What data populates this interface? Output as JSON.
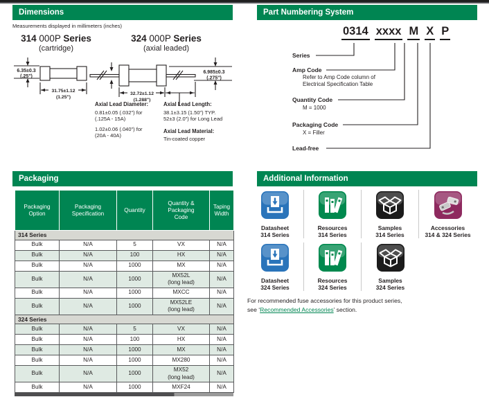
{
  "colors": {
    "brand_green": "#008552",
    "row_shade_green": "#dfeae3",
    "series_row_gray": "#d7d8d2",
    "datasheet_blue": "#2a74ba",
    "resources_green": "#00894e",
    "samples_black": "#1b1b1b",
    "accessories_maroon": "#8e2a5f",
    "link_green": "#008552"
  },
  "dimensions": {
    "header": "Dimensions",
    "note": "Measurements displayed in millimeters (inches)",
    "series_314": {
      "num": "314",
      "mid": " 000P ",
      "suffix": "Series",
      "sub": "(cartridge)"
    },
    "series_324": {
      "num": "324",
      "mid": " 000P ",
      "suffix": "Series",
      "sub": "(axial leaded)"
    },
    "diagram_314": {
      "dia": "6.35±0.3",
      "dia_in": "(.25\")",
      "len": "31.75±1.12",
      "len_in": "(1.25\")"
    },
    "diagram_324": {
      "dia": "6.985±0.3",
      "dia_in": "(.275\")",
      "len": "32.72±1.12",
      "len_in": "(1.288\")"
    },
    "lead_diameter": {
      "title": "Axial Lead Diameter:",
      "line1": "0.81±0.05 (.032\") for",
      "line2": "(.125A - 15A)",
      "line3": "1.02±0.06 (.040\") for",
      "line4": "(20A - 40A)"
    },
    "lead_length": {
      "title": "Axial Lead Length:",
      "line1": "38.1±3.15 (1.50\") TYP.",
      "line2": "52±3 (2.0\") for Long Lead"
    },
    "lead_material": {
      "title": "Axial Lead Material:",
      "line1": "Tin-coated copper"
    }
  },
  "part_numbering": {
    "header": "Part Numbering System",
    "code_groups": [
      "0314",
      "xxxx",
      "M",
      "X",
      "P"
    ],
    "labels": {
      "series": "Series",
      "amp_code": "Amp Code",
      "amp_desc1": "Refer to Amp Code column of",
      "amp_desc2": "Electrical Specification Table",
      "quantity_code": "Quantity Code",
      "quantity_desc": "M = 1000",
      "packaging_code": "Packaging Code",
      "packaging_desc": "X = Filler",
      "lead_free": "Lead-free"
    }
  },
  "packaging": {
    "header": "Packaging",
    "columns": [
      "Packaging\nOption",
      "Packaging\nSpecification",
      "Quantity",
      "Quantity &\nPackaging\nCode",
      "Taping\nWidth"
    ],
    "groups": [
      {
        "name": "314 Series",
        "first_row_shaded": false,
        "rows": [
          [
            "Bulk",
            "N/A",
            "5",
            "VX",
            "N/A"
          ],
          [
            "Bulk",
            "N/A",
            "100",
            "HX",
            "N/A"
          ],
          [
            "Bulk",
            "N/A",
            "1000",
            "MX",
            "N/A"
          ],
          [
            "Bulk",
            "N/A",
            "1000",
            "MX52L\n(long lead)",
            "N/A"
          ],
          [
            "Bulk",
            "N/A",
            "1000",
            "MXCC",
            "N/A"
          ],
          [
            "Bulk",
            "N/A",
            "1000",
            "MX52LE\n(long lead)",
            "N/A"
          ]
        ]
      },
      {
        "name": "324 Series",
        "first_row_shaded": true,
        "rows": [
          [
            "Bulk",
            "N/A",
            "5",
            "VX",
            "N/A"
          ],
          [
            "Bulk",
            "N/A",
            "100",
            "HX",
            "N/A"
          ],
          [
            "Bulk",
            "N/A",
            "1000",
            "MX",
            "N/A"
          ],
          [
            "Bulk",
            "N/A",
            "1000",
            "MX280",
            "N/A"
          ],
          [
            "Bulk",
            "N/A",
            "1000",
            "MX52\n(long lead)",
            "N/A"
          ],
          [
            "Bulk",
            "N/A",
            "1000",
            "MXF24",
            "N/A"
          ]
        ]
      }
    ]
  },
  "additional_info": {
    "header": "Additional Information",
    "tiles_row1": [
      {
        "icon": "datasheet",
        "color": "#2a74ba",
        "label": "Datasheet\n314 Series"
      },
      {
        "icon": "resources",
        "color": "#00894e",
        "label": "Resources\n314 Series"
      },
      {
        "icon": "samples",
        "color": "#1b1b1b",
        "label": "Samples\n314 Series"
      },
      {
        "icon": "accessories",
        "color": "#8e2a5f",
        "label": "Accessories\n314 & 324 Series"
      }
    ],
    "tiles_row2": [
      {
        "icon": "datasheet",
        "color": "#2a74ba",
        "label": "Datasheet\n324 Series"
      },
      {
        "icon": "resources",
        "color": "#00894e",
        "label": "Resources\n324 Series"
      },
      {
        "icon": "samples",
        "color": "#1b1b1b",
        "label": "Samples\n324 Series"
      }
    ],
    "footer_line1": "For recommended fuse accessories for this product series,",
    "footer_pre": "see ‘",
    "footer_link": "Recommended Accessories",
    "footer_post": "’ section."
  }
}
